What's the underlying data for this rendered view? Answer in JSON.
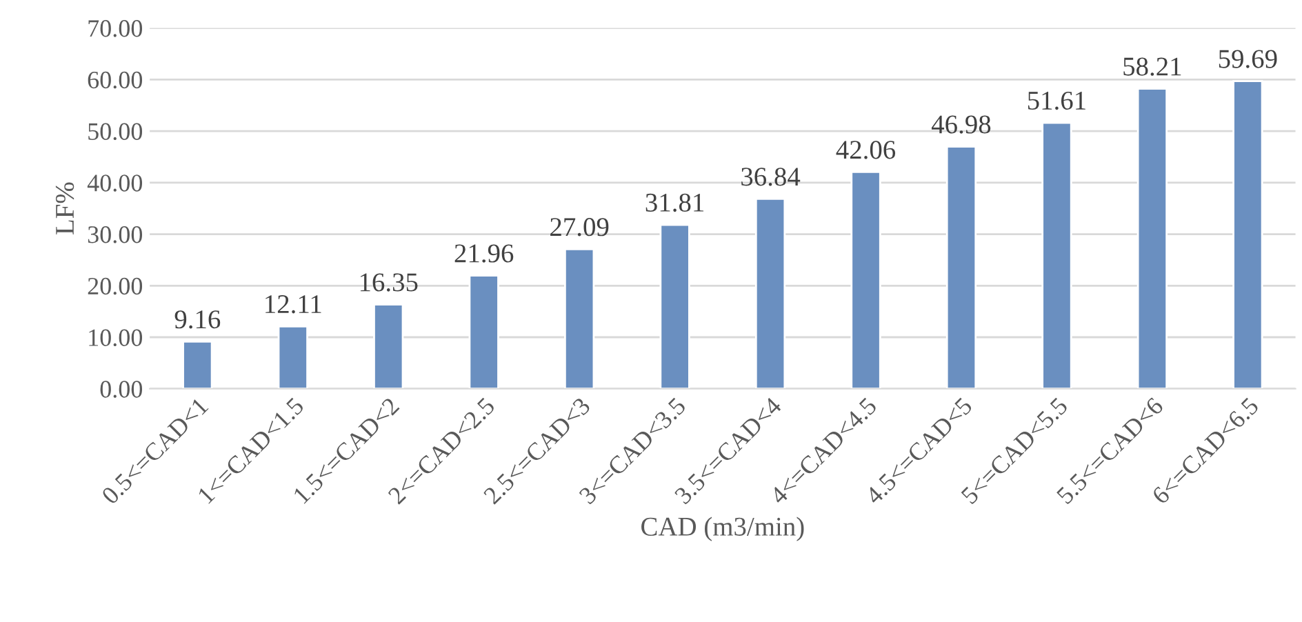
{
  "chart_data": {
    "type": "bar",
    "categories": [
      "0.5<=CAD<1",
      "1<=CAD<1.5",
      "1.5<=CAD<2",
      "2<=CAD<2.5",
      "2.5<=CAD<3",
      "3<=CAD<3.5",
      "3.5<=CAD<4",
      "4<=CAD<4.5",
      "4.5<=CAD<5",
      "5<=CAD<5.5",
      "5.5<=CAD<6",
      "6<=CAD<6.5"
    ],
    "values": [
      9.16,
      12.11,
      16.35,
      21.96,
      27.09,
      31.81,
      36.84,
      42.06,
      46.98,
      51.61,
      58.21,
      59.69
    ],
    "color": "#6a8fc0",
    "xlabel": "CAD (m3/min)",
    "ylabel": "LF%",
    "ylim": [
      0,
      70
    ],
    "yticks": [
      {
        "value": 0,
        "label": "0.00"
      },
      {
        "value": 10,
        "label": "10.00"
      },
      {
        "value": 20,
        "label": "20.00"
      },
      {
        "value": 30,
        "label": "30.00"
      },
      {
        "value": 40,
        "label": "40.00"
      },
      {
        "value": 50,
        "label": "50.00"
      },
      {
        "value": 60,
        "label": "60.00"
      },
      {
        "value": 70,
        "label": "70.00"
      }
    ],
    "grid": "y",
    "data_labels": true
  }
}
